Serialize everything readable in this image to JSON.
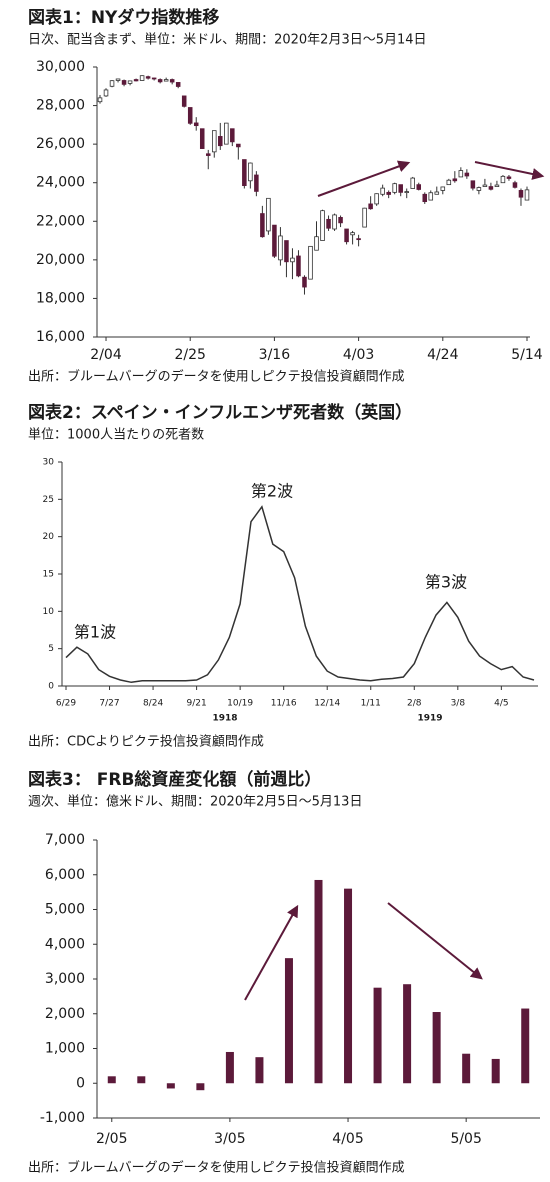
{
  "chart_data": [
    {
      "type": "candlestick",
      "title": "図表1：NYダウ指数推移",
      "subtitle": "日次、配当含まず、単位：米ドル、期間：2020年2月3日～5月14日",
      "source": "出所：ブルームバーグのデータを使用しピクテ投信投資顧問作成",
      "categories": [
        null,
        "2/04",
        null,
        null,
        null,
        null,
        null,
        null,
        null,
        null,
        null,
        null,
        null,
        null,
        null,
        "2/25",
        null,
        null,
        null,
        null,
        null,
        null,
        null,
        null,
        null,
        null,
        null,
        null,
        null,
        "3/16",
        null,
        null,
        null,
        null,
        null,
        null,
        null,
        null,
        null,
        null,
        null,
        null,
        null,
        "4/03",
        null,
        null,
        null,
        null,
        null,
        null,
        null,
        null,
        null,
        null,
        null,
        null,
        null,
        "4/24",
        null,
        null,
        null,
        null,
        null,
        null,
        null,
        null,
        null,
        null,
        null,
        null,
        null,
        "5/14"
      ],
      "open": [
        28200,
        28500,
        29000,
        29300,
        29300,
        29150,
        29350,
        29300,
        29500,
        29430,
        29350,
        29270,
        29350,
        29200,
        28500,
        27900,
        27100,
        26800,
        25500,
        25600,
        26400,
        26000,
        26800,
        26000,
        25200,
        24100,
        24400,
        22400,
        21500,
        21800,
        20000,
        21000,
        19900,
        20200,
        19100,
        19000,
        20500,
        21000,
        22100,
        21600,
        22200,
        21600,
        21300,
        21100,
        21700,
        22900,
        22900,
        23400,
        23500,
        23500,
        23900,
        23500,
        23700,
        23900,
        23400,
        23100,
        23400,
        23600,
        23900,
        24200,
        24300,
        24500,
        24100,
        23600,
        23800,
        23800,
        23800,
        24000,
        24300,
        24000,
        23600,
        23100
      ],
      "high": [
        28550,
        28900,
        29320,
        29400,
        29350,
        29300,
        29400,
        29570,
        29550,
        29450,
        29410,
        29450,
        29400,
        29200,
        28500,
        27900,
        27400,
        26800,
        25700,
        26700,
        27100,
        27100,
        26800,
        26000,
        25200,
        25050,
        24600,
        22800,
        23200,
        21800,
        21700,
        21000,
        20600,
        20500,
        19200,
        20700,
        22000,
        22600,
        22300,
        22400,
        22300,
        21600,
        21500,
        21300,
        22700,
        23300,
        23450,
        23900,
        23600,
        24000,
        23900,
        23700,
        24300,
        24000,
        23500,
        23600,
        23800,
        23800,
        24200,
        24600,
        24800,
        24700,
        24100,
        23800,
        24200,
        24000,
        24100,
        24400,
        24400,
        24100,
        23700,
        23800
      ],
      "low": [
        28100,
        28450,
        28950,
        29200,
        29000,
        29050,
        29250,
        29280,
        29350,
        29300,
        29150,
        29250,
        29100,
        28900,
        27900,
        27000,
        26700,
        25750,
        24700,
        25300,
        25700,
        26000,
        25900,
        25200,
        23700,
        23700,
        23300,
        21150,
        21300,
        20100,
        19700,
        19100,
        19000,
        19100,
        18200,
        19000,
        20500,
        21000,
        21500,
        21500,
        21700,
        20800,
        20800,
        20700,
        21700,
        22600,
        22800,
        23300,
        23200,
        23400,
        23300,
        23200,
        23700,
        23600,
        22900,
        23100,
        23400,
        23400,
        23900,
        24000,
        24300,
        24200,
        23600,
        23400,
        23800,
        23600,
        23800,
        24000,
        24100,
        23700,
        22800,
        23100
      ],
      "close": [
        28400,
        28810,
        29290,
        29380,
        29100,
        29280,
        29280,
        29550,
        29420,
        29400,
        29230,
        29350,
        29220,
        28990,
        27960,
        27080,
        26960,
        25770,
        25410,
        26700,
        25920,
        27090,
        26120,
        25860,
        23850,
        25020,
        23550,
        21200,
        23190,
        20190,
        21240,
        19900,
        20090,
        19170,
        18590,
        20700,
        21200,
        22550,
        21640,
        22330,
        21920,
        20940,
        21410,
        21050,
        22680,
        22650,
        23430,
        23720,
        23390,
        23950,
        23500,
        23540,
        24240,
        23650,
        23020,
        23480,
        23520,
        23780,
        24130,
        24100,
        24630,
        24350,
        23720,
        23750,
        23880,
        23660,
        23880,
        24330,
        24220,
        23760,
        23250,
        23630
      ],
      "up_color": "#ffffff",
      "down_color": "#5c1a3a",
      "ylim": [
        16000,
        30000
      ],
      "yticks": [
        {
          "value": 16000,
          "label": "16,000"
        },
        {
          "value": 18000,
          "label": "18,000"
        },
        {
          "value": 20000,
          "label": "20,000"
        },
        {
          "value": 22000,
          "label": "22,000"
        },
        {
          "value": 24000,
          "label": "24,000"
        },
        {
          "value": 26000,
          "label": "26,000"
        },
        {
          "value": 28000,
          "label": "28,000"
        },
        {
          "value": 30000,
          "label": "30,000"
        }
      ]
    },
    {
      "type": "line",
      "title": "図表2：スペイン・インフルエンザ死者数（英国）",
      "subtitle": "単位：1000人当たりの死者数",
      "source": "出所：CDCよりピクテ投信投資顧問作成",
      "categories": [
        "6/29",
        null,
        null,
        null,
        "7/27",
        null,
        null,
        null,
        "8/24",
        null,
        null,
        null,
        "9/21",
        null,
        null,
        null,
        "10/19",
        null,
        null,
        null,
        "11/16",
        null,
        null,
        null,
        "12/14",
        null,
        null,
        null,
        "1/11",
        null,
        null,
        null,
        "2/8",
        null,
        null,
        null,
        "3/8",
        null,
        null,
        null,
        "4/5",
        null,
        null,
        null
      ],
      "values": [
        3.8,
        5.2,
        4.3,
        2.2,
        1.3,
        0.8,
        0.5,
        0.7,
        0.7,
        0.7,
        0.7,
        0.7,
        0.8,
        1.5,
        3.5,
        6.5,
        11,
        22,
        24,
        19,
        18,
        14.5,
        8,
        4,
        2,
        1.2,
        1.0,
        0.8,
        0.7,
        0.9,
        1.0,
        1.2,
        3,
        6.5,
        9.5,
        11.2,
        9.2,
        6,
        4,
        3,
        2.2,
        2.6,
        1.2,
        0.8
      ],
      "color": "#333333",
      "year_labels": [
        "1918",
        "1919"
      ],
      "annotations": [
        "第1波",
        "第2波",
        "第3波"
      ],
      "ylim": [
        0,
        30
      ],
      "yticks": [
        0,
        5,
        10,
        15,
        20,
        25,
        30
      ]
    },
    {
      "type": "bar",
      "title": "図表3： FRB総資産変化額（前週比）",
      "subtitle": "週次、単位：億米ドル、期間：2020年2月5日～5月13日",
      "source": "出所：ブルームバーグのデータを使用しピクテ投信投資顧問作成",
      "categories": [
        "2/05",
        null,
        null,
        null,
        "3/05",
        null,
        null,
        null,
        "4/05",
        null,
        null,
        null,
        "5/05",
        null,
        null
      ],
      "values": [
        200,
        200,
        -150,
        -200,
        900,
        750,
        3600,
        5850,
        5600,
        2750,
        2850,
        2050,
        850,
        700,
        2150
      ],
      "color": "#5c1a3a",
      "ylim": [
        -1000,
        7000
      ],
      "yticks": [
        {
          "value": -1000,
          "label": "-1,000"
        },
        0,
        {
          "value": 1000,
          "label": "1,000"
        },
        {
          "value": 2000,
          "label": "2,000"
        },
        {
          "value": 3000,
          "label": "3,000"
        },
        {
          "value": 4000,
          "label": "4,000"
        },
        {
          "value": 5000,
          "label": "5,000"
        },
        {
          "value": 6000,
          "label": "6,000"
        },
        {
          "value": 7000,
          "label": "7,000"
        }
      ]
    }
  ]
}
